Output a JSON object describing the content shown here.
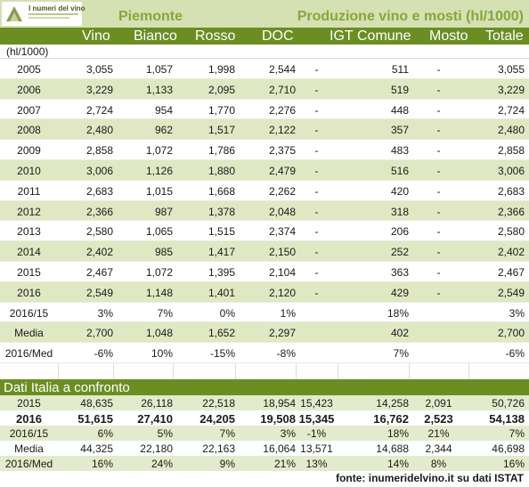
{
  "logo": {
    "text": "I numeri del vino"
  },
  "title_left": "Piemonte",
  "title_right": "Produzione vino e mosti (hl/1000)",
  "columns": [
    "Vino",
    "Bianco",
    "Rosso",
    "DOC",
    "IGT",
    "Comune",
    "Mosto",
    "Totale"
  ],
  "unit_label": "(hl/1000)",
  "rows": [
    [
      "2005",
      "3,055",
      "1,057",
      "1,998",
      "2,544",
      "-",
      "511",
      "-",
      "3,055"
    ],
    [
      "2006",
      "3,229",
      "1,133",
      "2,095",
      "2,710",
      "-",
      "519",
      "-",
      "3,229"
    ],
    [
      "2007",
      "2,724",
      "954",
      "1,770",
      "2,276",
      "-",
      "448",
      "-",
      "2,724"
    ],
    [
      "2008",
      "2,480",
      "962",
      "1,517",
      "2,122",
      "-",
      "357",
      "-",
      "2,480"
    ],
    [
      "2009",
      "2,858",
      "1,072",
      "1,786",
      "2,375",
      "-",
      "483",
      "-",
      "2,858"
    ],
    [
      "2010",
      "3,006",
      "1,126",
      "1,880",
      "2,479",
      "-",
      "516",
      "-",
      "3,006"
    ],
    [
      "2011",
      "2,683",
      "1,015",
      "1,668",
      "2,262",
      "-",
      "420",
      "-",
      "2,683"
    ],
    [
      "2012",
      "2,366",
      "987",
      "1,378",
      "2,048",
      "-",
      "318",
      "-",
      "2,366"
    ],
    [
      "2013",
      "2,580",
      "1,065",
      "1,515",
      "2,374",
      "-",
      "206",
      "-",
      "2,580"
    ],
    [
      "2014",
      "2,402",
      "985",
      "1,417",
      "2,150",
      "-",
      "252",
      "-",
      "2,402"
    ],
    [
      "2015",
      "2,467",
      "1,072",
      "1,395",
      "2,104",
      "-",
      "363",
      "-",
      "2,467"
    ],
    [
      "2016",
      "2,549",
      "1,148",
      "1,401",
      "2,120",
      "-",
      "429",
      "-",
      "2,549"
    ],
    [
      "2016/15",
      "3%",
      "7%",
      "0%",
      "1%",
      "",
      "18%",
      "",
      "3%"
    ],
    [
      "Media",
      "2,700",
      "1,048",
      "1,652",
      "2,297",
      "",
      "402",
      "",
      "2,700"
    ],
    [
      "2016/Med",
      "-6%",
      "10%",
      "-15%",
      "-8%",
      "",
      "7%",
      "",
      "-6%"
    ]
  ],
  "italy_title": "Dati Italia a confronto",
  "italy_rows": [
    [
      "2015",
      "48,635",
      "26,118",
      "22,518",
      "18,954",
      "15,423",
      "14,258",
      "2,091",
      "50,726"
    ],
    [
      "2016",
      "51,615",
      "27,410",
      "24,205",
      "19,508",
      "15,345",
      "16,762",
      "2,523",
      "54,138"
    ],
    [
      "2016/15",
      "6%",
      "5%",
      "7%",
      "3%",
      "-1%",
      "18%",
      "21%",
      "7%"
    ],
    [
      "Media",
      "44,325",
      "22,180",
      "22,163",
      "16,064",
      "13,571",
      "14,688",
      "2,344",
      "46,698"
    ],
    [
      "2016/Med",
      "16%",
      "24%",
      "9%",
      "21%",
      "13%",
      "14%",
      "8%",
      "16%"
    ]
  ],
  "source": "fonte: inumeridelvino.it su dati ISTAT",
  "colors": {
    "header_bg": "#d5e0b3",
    "title_green": "#86a73a",
    "column_bar": "#6b8e23",
    "row_alt": "#dfe8c3",
    "italy_alt": "#e2ebcb"
  }
}
